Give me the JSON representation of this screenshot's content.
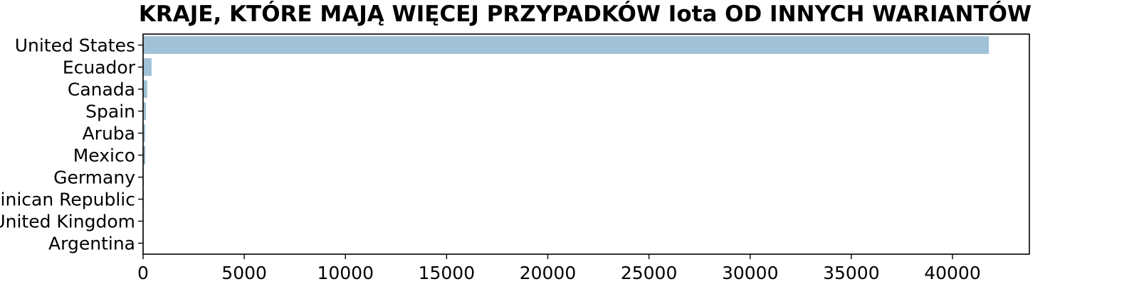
{
  "chart_data": {
    "type": "bar",
    "orientation": "horizontal",
    "title": "KRAJE, KTÓRE MAJĄ WIĘCEJ PRZYPADKÓW Iota OD INNYCH WARIANTÓW",
    "xlabel": "",
    "ylabel": "",
    "categories": [
      "United States",
      "Ecuador",
      "Canada",
      "Spain",
      "Aruba",
      "Mexico",
      "Germany",
      "Dominican Republic",
      "United Kingdom",
      "Argentina"
    ],
    "values": [
      41800,
      420,
      200,
      140,
      100,
      70,
      15,
      12,
      10,
      8
    ],
    "xlim": [
      0,
      43800
    ],
    "xticks": [
      0,
      5000,
      10000,
      15000,
      20000,
      25000,
      30000,
      35000,
      40000
    ],
    "grid": false,
    "legend": "none",
    "bar_color": "#a0c1d6",
    "edge_color": "#5b7f96"
  }
}
